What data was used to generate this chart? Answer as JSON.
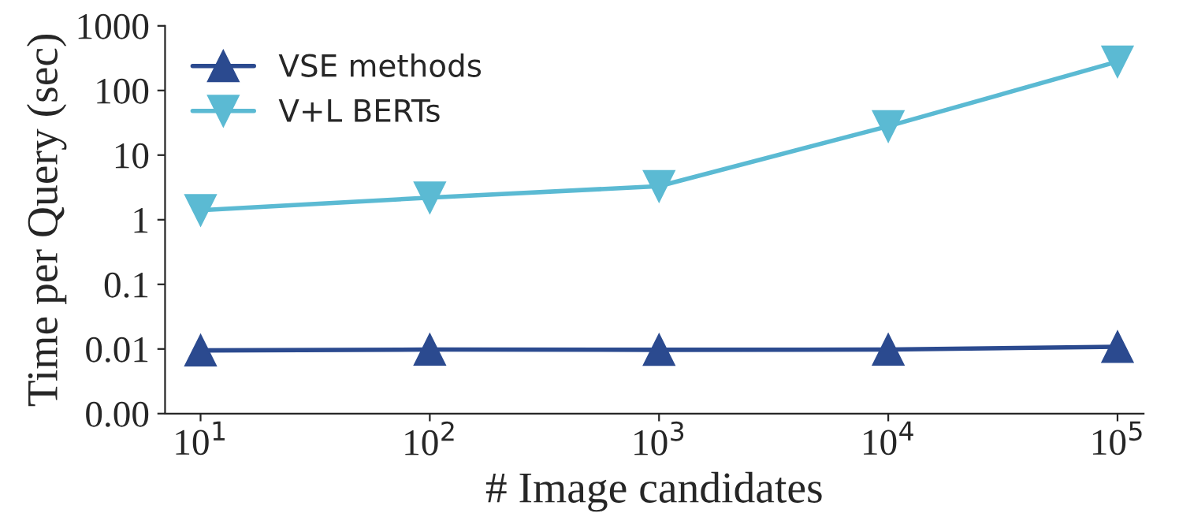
{
  "chart_data": {
    "type": "line",
    "xlabel": "# Image candidates",
    "ylabel": "Time per Query (sec)",
    "x": [
      10,
      100,
      1000,
      10000,
      100000
    ],
    "series": [
      {
        "name": "VSE methods",
        "color": "#2b4a8f",
        "marker": "triangle",
        "values": [
          0.0095,
          0.0098,
          0.0097,
          0.0098,
          0.0108
        ]
      },
      {
        "name": "V+L BERTs",
        "color": "#5bbad3",
        "marker": "triangle_down",
        "values": [
          1.4,
          2.2,
          3.3,
          28,
          280
        ]
      }
    ],
    "log": "xy",
    "xlim": [
      7,
      130000
    ],
    "xticks": [
      {
        "value": 10,
        "label": "10$^{1}$"
      },
      {
        "value": 100,
        "label": "10$^{2}$"
      },
      {
        "value": 1000,
        "label": "10$^{3}$"
      },
      {
        "value": 10000,
        "label": "10$^{4}$"
      },
      {
        "value": 100000,
        "label": "10$^{5}$"
      }
    ],
    "ylim": [
      0.001,
      1000
    ],
    "yticks": [
      {
        "value": 0.001,
        "label": "0.00"
      },
      0.01,
      0.1,
      1,
      10,
      100,
      1000
    ],
    "grid": false,
    "legend": "top left",
    "line_style": "solid"
  }
}
